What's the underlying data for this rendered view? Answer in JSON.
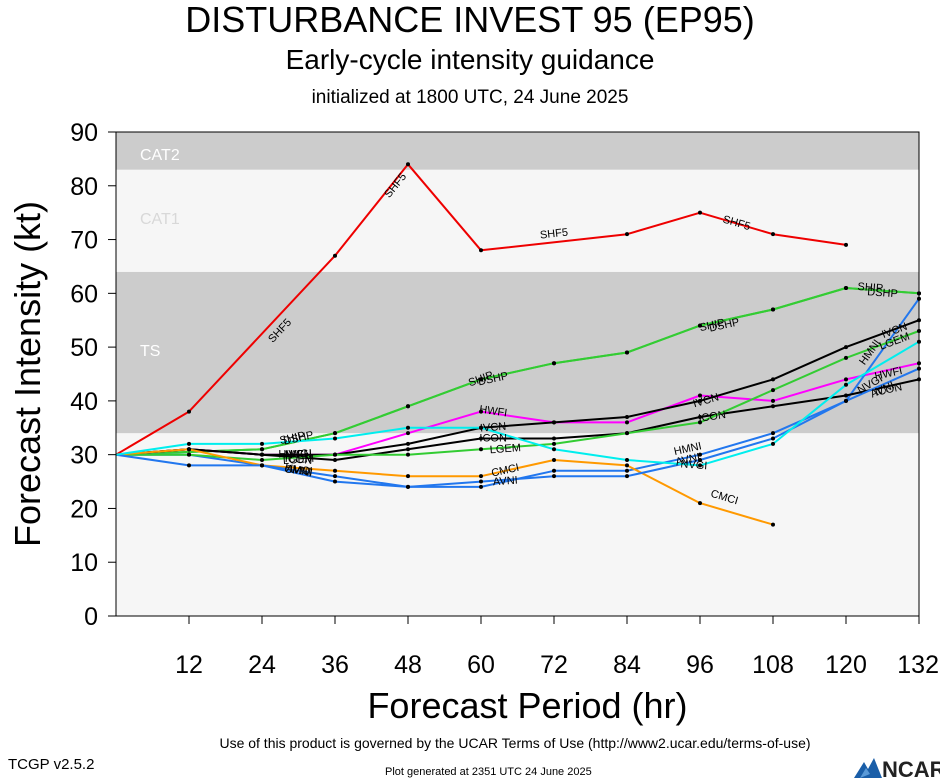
{
  "header": {
    "title": "DISTURBANCE INVEST 95 (EP95)",
    "subtitle": "Early-cycle intensity guidance",
    "initialized": "initialized at 1800 UTC, 24 June 2025"
  },
  "footer": {
    "terms": "Use of this product is governed by the UCAR Terms of Use (http://www2.ucar.edu/terms-of-use)",
    "version": "TCGP v2.5.2",
    "generated": "Plot generated at 2351 UTC   24 June 2025",
    "logo_text": "NCAR"
  },
  "chart_data": {
    "type": "line",
    "xlabel": "Forecast Period (hr)",
    "ylabel": "Forecast Intensity (kt)",
    "xlim": [
      0,
      132
    ],
    "ylim": [
      0,
      90
    ],
    "xticks": [
      12,
      24,
      36,
      48,
      60,
      72,
      84,
      96,
      108,
      120,
      132
    ],
    "yticks": [
      0,
      10,
      20,
      30,
      40,
      50,
      60,
      70,
      80,
      90
    ],
    "grid": false,
    "bands": [
      {
        "label": "TS",
        "from": 34,
        "to": 64,
        "color": "#cccccc"
      },
      {
        "label": "CAT1",
        "from": 64,
        "to": 83,
        "color": "#f6f6f6"
      },
      {
        "label": "CAT2",
        "from": 83,
        "to": 90,
        "color": "#cccccc"
      }
    ],
    "series": [
      {
        "name": "SHF5",
        "color": "#ee0000",
        "x": [
          0,
          12,
          36,
          48,
          60,
          84,
          96,
          108,
          120
        ],
        "y": [
          30,
          38,
          67,
          84,
          68,
          71,
          75,
          71,
          69
        ],
        "labels_at": [
          [
            27,
            53
          ],
          [
            46,
            80
          ],
          [
            72,
            71
          ],
          [
            102,
            73
          ]
        ]
      },
      {
        "name": "DSHP",
        "color": "#33cc33",
        "x": [
          0,
          24,
          36,
          48,
          60,
          72,
          84,
          96,
          108,
          120,
          132
        ],
        "y": [
          30,
          31,
          34,
          39,
          44,
          47,
          49,
          54,
          57,
          61,
          60
        ],
        "labels_at": [
          [
            30,
            33
          ],
          [
            62,
            44
          ],
          [
            100,
            54
          ],
          [
            126,
            60
          ]
        ]
      },
      {
        "name": "SHIP",
        "color": "#33cc33",
        "x": [
          0,
          24,
          36,
          48,
          60,
          72,
          84,
          96,
          108,
          120,
          132
        ],
        "y": [
          30,
          31,
          34,
          39,
          44,
          47,
          49,
          54,
          57,
          61,
          60
        ],
        "labels_at": [
          [
            29,
            33
          ],
          [
            60,
            44
          ],
          [
            98,
            54
          ],
          [
            124,
            61
          ]
        ]
      },
      {
        "name": "HWFI",
        "color": "#ff00ff",
        "x": [
          0,
          12,
          24,
          36,
          48,
          60,
          72,
          84,
          96,
          108,
          120,
          132
        ],
        "y": [
          30,
          31,
          30,
          30,
          34,
          38,
          36,
          36,
          41,
          40,
          44,
          47
        ],
        "labels_at": [
          [
            29,
            30
          ],
          [
            62,
            38
          ],
          [
            127,
            45
          ]
        ]
      },
      {
        "name": "HMNI",
        "color": "#2277ee",
        "x": [
          0,
          12,
          24,
          36,
          48,
          60,
          72,
          84,
          96,
          108,
          120,
          132
        ],
        "y": [
          30,
          30,
          28,
          25,
          24,
          24,
          27,
          27,
          30,
          34,
          40,
          59
        ],
        "labels_at": [
          [
            30,
            27
          ],
          [
            94,
            31
          ],
          [
            124,
            49
          ]
        ]
      },
      {
        "name": "IVCN",
        "color": "#000000",
        "x": [
          0,
          12,
          24,
          36,
          48,
          60,
          72,
          84,
          96,
          108,
          120,
          132
        ],
        "y": [
          30,
          31,
          30,
          30,
          32,
          35,
          36,
          37,
          40,
          44,
          50,
          55
        ],
        "labels_at": [
          [
            30,
            30
          ],
          [
            62,
            35
          ],
          [
            97,
            40
          ],
          [
            128,
            53
          ]
        ]
      },
      {
        "name": "ICON",
        "color": "#000000",
        "x": [
          0,
          12,
          24,
          36,
          48,
          60,
          72,
          84,
          96,
          108,
          120,
          132
        ],
        "y": [
          30,
          31,
          30,
          29,
          31,
          33,
          33,
          34,
          37,
          39,
          41,
          44
        ],
        "labels_at": [
          [
            30,
            29
          ],
          [
            62,
            33
          ],
          [
            98,
            37
          ],
          [
            127,
            42
          ]
        ]
      },
      {
        "name": "LGEM",
        "color": "#33cc33",
        "x": [
          0,
          12,
          24,
          36,
          48,
          60,
          72,
          84,
          96,
          108,
          120,
          132
        ],
        "y": [
          30,
          30,
          29,
          30,
          30,
          31,
          32,
          34,
          36,
          42,
          48,
          53
        ],
        "labels_at": [
          [
            30,
            29
          ],
          [
            64,
            31
          ],
          [
            128,
            51
          ]
        ]
      },
      {
        "name": "CMCI",
        "color": "#ff9900",
        "x": [
          0,
          12,
          24,
          36,
          48,
          60,
          72,
          84,
          96,
          108
        ],
        "y": [
          30,
          31,
          28,
          27,
          26,
          26,
          29,
          28,
          21,
          17
        ],
        "labels_at": [
          [
            30,
            27
          ],
          [
            64,
            27
          ],
          [
            100,
            22
          ]
        ]
      },
      {
        "name": "AVNI",
        "color": "#2277ee",
        "x": [
          0,
          12,
          24,
          36,
          48,
          60,
          72,
          84,
          96,
          108,
          120,
          132
        ],
        "y": [
          30,
          28,
          28,
          26,
          24,
          25,
          26,
          26,
          29,
          33,
          40,
          46
        ],
        "labels_at": [
          [
            30,
            27
          ],
          [
            64,
            25
          ],
          [
            94,
            29
          ],
          [
            126,
            42
          ]
        ]
      },
      {
        "name": "NVGI",
        "color": "#00eeee",
        "x": [
          0,
          12,
          24,
          36,
          48,
          60,
          72,
          84,
          96,
          108,
          120,
          132
        ],
        "y": [
          30,
          32,
          32,
          33,
          35,
          35,
          31,
          29,
          28,
          32,
          43,
          51
        ],
        "labels_at": [
          [
            30,
            30
          ],
          [
            95,
            28
          ],
          [
            124,
            43
          ]
        ]
      }
    ]
  }
}
